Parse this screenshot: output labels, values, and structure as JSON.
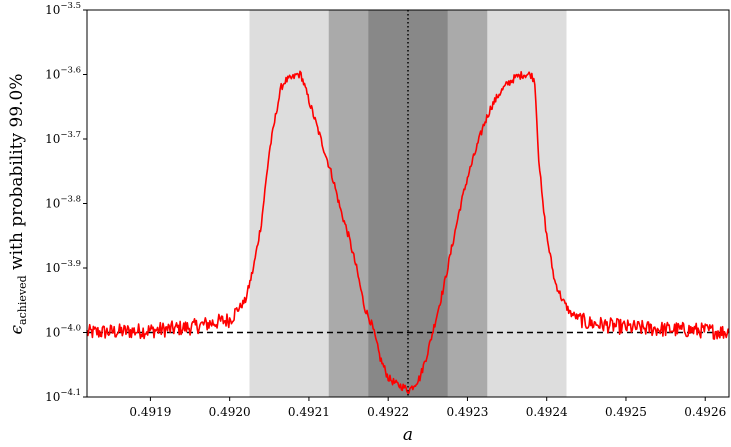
{
  "chart_data": {
    "type": "line",
    "xlabel": "a",
    "ylabel": {
      "symbol": "ϵ",
      "subscript": "achieved",
      "text": " with probability 99.0%"
    },
    "xlim": [
      0.49182,
      0.49263
    ],
    "ylim": [
      -4.1,
      -3.5
    ],
    "y_scale": "log10",
    "x_ticks": [
      "0.4919",
      "0.4920",
      "0.4921",
      "0.4922",
      "0.4923",
      "0.4924",
      "0.4925",
      "0.4926"
    ],
    "x_tick_values": [
      0.4919,
      0.492,
      0.4921,
      0.4922,
      0.4923,
      0.4924,
      0.4925,
      0.4926
    ],
    "y_ticks": [
      {
        "base": "10",
        "exp": "−4.1",
        "value": -4.1
      },
      {
        "base": "10",
        "exp": "−4.0",
        "value": -4.0
      },
      {
        "base": "10",
        "exp": "−3.9",
        "value": -3.9
      },
      {
        "base": "10",
        "exp": "−3.8",
        "value": -3.8
      },
      {
        "base": "10",
        "exp": "−3.7",
        "value": -3.7
      },
      {
        "base": "10",
        "exp": "−3.6",
        "value": -3.6
      },
      {
        "base": "10",
        "exp": "−3.5",
        "value": -3.5
      }
    ],
    "bands": [
      {
        "x0": 0.492025,
        "x1": 0.492425,
        "color": "#dddddd"
      },
      {
        "x0": 0.492125,
        "x1": 0.492325,
        "color": "#aaaaaa"
      },
      {
        "x0": 0.492175,
        "x1": 0.492275,
        "color": "#888888"
      }
    ],
    "vline": {
      "x": 0.492225,
      "style": "dotted",
      "color": "#000000"
    },
    "hline": {
      "y": -4.0,
      "style": "dashed",
      "color": "#000000"
    },
    "series": [
      {
        "color": "#ff0000",
        "x": [
          0.49182,
          0.4919,
          0.49195,
          0.492,
          0.49202,
          0.49203,
          0.49204,
          0.49205,
          0.49206,
          0.492065,
          0.49207,
          0.49208,
          0.492085,
          0.49209,
          0.4921,
          0.49211,
          0.49212,
          0.49213,
          0.49214,
          0.49215,
          0.49216,
          0.49217,
          0.49218,
          0.49219,
          0.4922,
          0.49221,
          0.49222,
          0.492225,
          0.49223,
          0.49224,
          0.49225,
          0.49226,
          0.49227,
          0.49228,
          0.49229,
          0.4923,
          0.49231,
          0.49232,
          0.49233,
          0.49234,
          0.49235,
          0.49236,
          0.49237,
          0.49238,
          0.492385,
          0.49239,
          0.492395,
          0.4924,
          0.49241,
          0.49242,
          0.49243,
          0.49245,
          0.4925,
          0.49255,
          0.4926,
          0.49263
        ],
        "y": [
          -4.0,
          -3.997,
          -3.992,
          -3.98,
          -3.95,
          -3.9,
          -3.83,
          -3.72,
          -3.65,
          -3.62,
          -3.61,
          -3.605,
          -3.6,
          -3.6,
          -3.64,
          -3.68,
          -3.72,
          -3.76,
          -3.81,
          -3.85,
          -3.9,
          -3.96,
          -3.99,
          -4.04,
          -4.07,
          -4.08,
          -4.085,
          -4.09,
          -4.085,
          -4.07,
          -4.03,
          -3.98,
          -3.93,
          -3.87,
          -3.81,
          -3.76,
          -3.72,
          -3.68,
          -3.65,
          -3.63,
          -3.615,
          -3.605,
          -3.6,
          -3.6,
          -3.61,
          -3.73,
          -3.8,
          -3.85,
          -3.92,
          -3.95,
          -3.97,
          -3.985,
          -3.992,
          -3.995,
          -3.997,
          -4.0
        ]
      }
    ]
  }
}
